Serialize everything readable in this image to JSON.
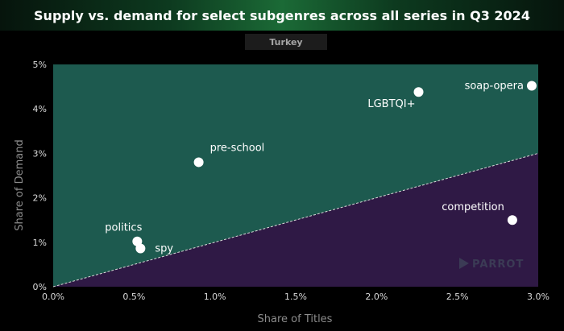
{
  "title": "Supply vs. demand for select subgenres across all series in Q3 2024",
  "subtitle": "Turkey",
  "watermark": "PARROT",
  "colors": {
    "above_region": "#1d5a4f",
    "below_region": "#2f1945",
    "point": "#ffffff",
    "diagonal": "#d9d9d9"
  },
  "chart_data": {
    "type": "scatter",
    "title": "Supply vs. demand for select subgenres across all series in Q3 2024",
    "subtitle": "Turkey",
    "xlabel": "Share of Titles",
    "ylabel": "Share of Demand",
    "xlim": [
      0,
      3.0
    ],
    "ylim": [
      0,
      5
    ],
    "x_ticks": [
      "0.0%",
      "0.5%",
      "1.0%",
      "1.5%",
      "2.0%",
      "2.5%",
      "3.0%"
    ],
    "y_ticks": [
      "0%",
      "1%",
      "2%",
      "3%",
      "4%",
      "5%"
    ],
    "reference_line": "y = x",
    "points": [
      {
        "label": "soap-opera",
        "x": 2.96,
        "y": 4.52
      },
      {
        "label": "LGBTQI+",
        "x": 2.26,
        "y": 4.38
      },
      {
        "label": "pre-school",
        "x": 0.9,
        "y": 2.8
      },
      {
        "label": "competition",
        "x": 2.84,
        "y": 1.5
      },
      {
        "label": "politics",
        "x": 0.52,
        "y": 1.02
      },
      {
        "label": "spy",
        "x": 0.54,
        "y": 0.86
      }
    ]
  }
}
